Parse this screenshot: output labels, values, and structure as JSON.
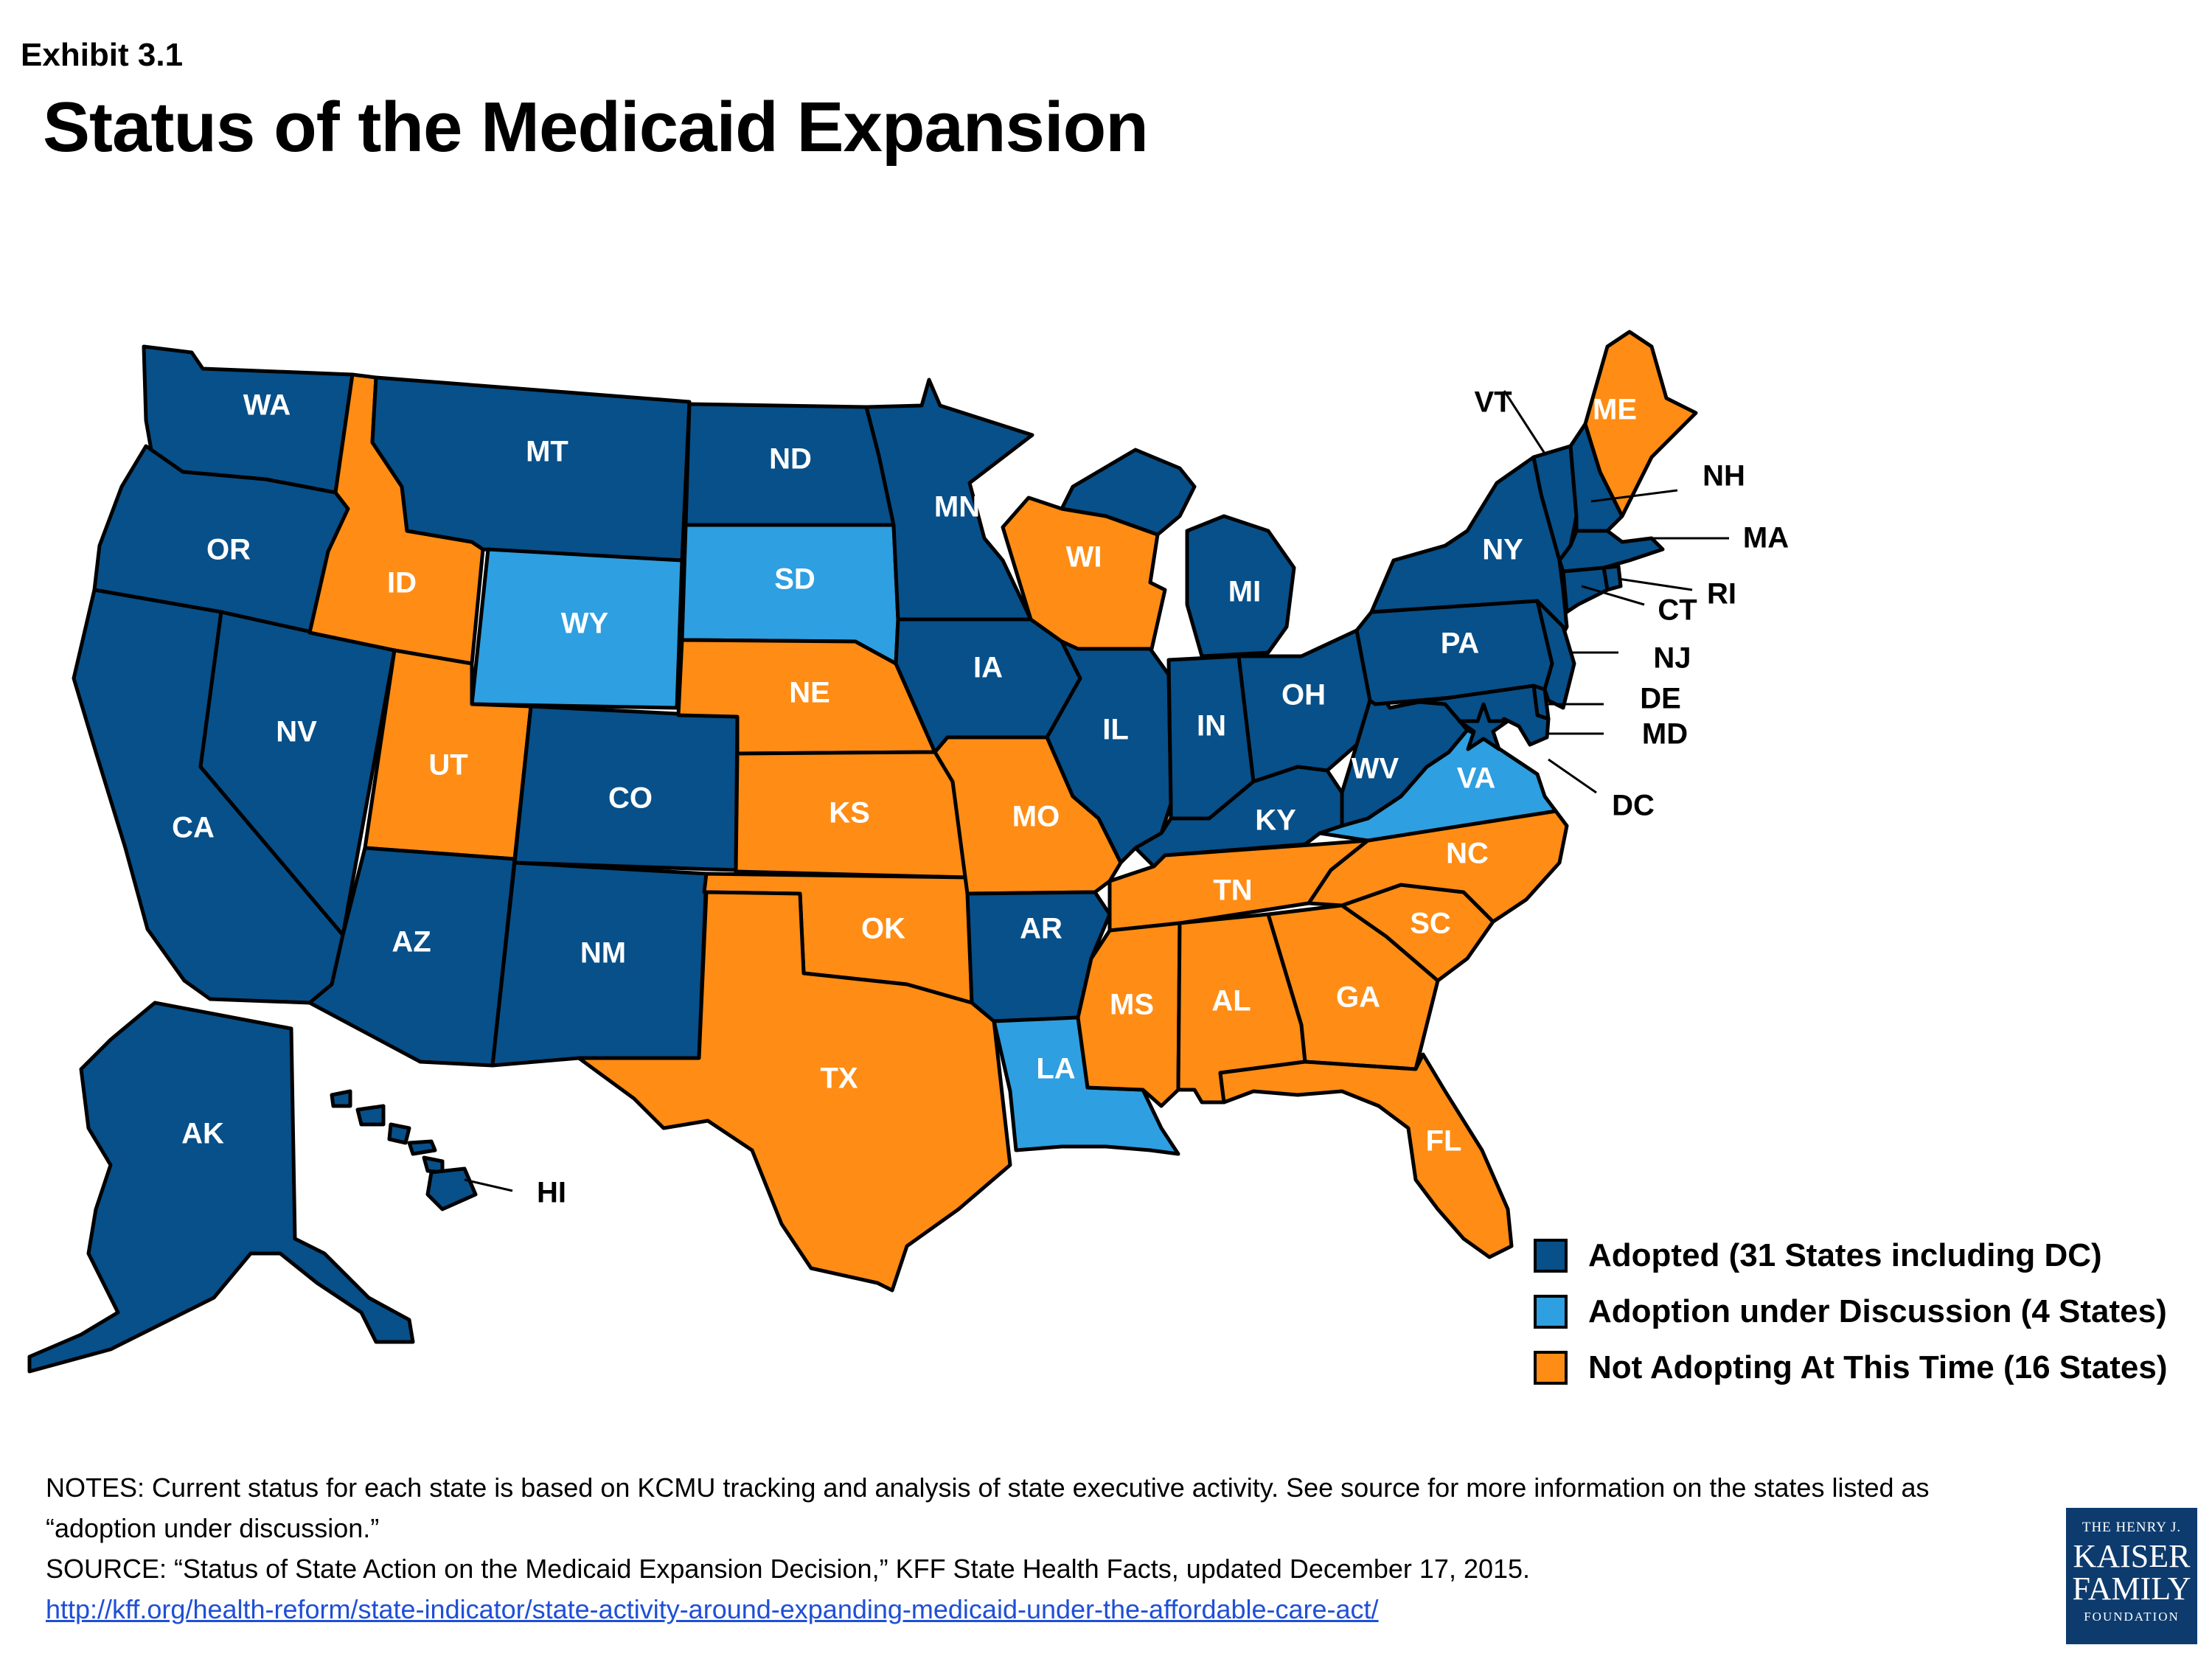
{
  "header": {
    "exhibit": "Exhibit 3.1",
    "title": "Status of the Medicaid Expansion"
  },
  "colors": {
    "adopted": "#07508a",
    "discussion": "#2e9fe0",
    "not_adopting": "#ff8c14"
  },
  "legend": [
    {
      "key": "adopted",
      "label": "Adopted (31 States including DC)"
    },
    {
      "key": "discussion",
      "label": "Adoption under Discussion (4 States)"
    },
    {
      "key": "not_adopting",
      "label": "Not Adopting At This Time (16 States)"
    }
  ],
  "states": {
    "WA": "adopted",
    "OR": "adopted",
    "CA": "adopted",
    "NV": "adopted",
    "ID": "not_adopting",
    "MT": "adopted",
    "WY": "discussion",
    "UT": "not_adopting",
    "AZ": "adopted",
    "CO": "adopted",
    "NM": "adopted",
    "ND": "adopted",
    "SD": "discussion",
    "NE": "not_adopting",
    "KS": "not_adopting",
    "OK": "not_adopting",
    "TX": "not_adopting",
    "MN": "adopted",
    "IA": "adopted",
    "MO": "not_adopting",
    "AR": "adopted",
    "LA": "discussion",
    "WI": "not_adopting",
    "IL": "adopted",
    "MI": "adopted",
    "IN": "adopted",
    "OH": "adopted",
    "KY": "adopted",
    "TN": "not_adopting",
    "MS": "not_adopting",
    "AL": "not_adopting",
    "GA": "not_adopting",
    "FL": "not_adopting",
    "SC": "not_adopting",
    "NC": "not_adopting",
    "VA": "discussion",
    "WV": "adopted",
    "PA": "adopted",
    "NY": "adopted",
    "VT": "adopted",
    "NH": "adopted",
    "ME": "not_adopting",
    "MA": "adopted",
    "RI": "adopted",
    "CT": "adopted",
    "NJ": "adopted",
    "DE": "adopted",
    "MD": "adopted",
    "DC": "adopted",
    "AK": "adopted",
    "HI": "adopted"
  },
  "notes": {
    "notes": "NOTES: Current status for each state is based on KCMU tracking and analysis of state executive activity. See source for more information on the states listed as “adoption under discussion.”",
    "source": "SOURCE: “Status of State Action on the Medicaid Expansion Decision,” KFF State Health Facts, updated December 17, 2015.",
    "link": "http://kff.org/health-reform/state-indicator/state-activity-around-expanding-medicaid-under-the-affordable-care-act/"
  },
  "logo": {
    "line1": "THE HENRY J.",
    "line2": "KAISER",
    "line3": "FAMILY",
    "line4": "FOUNDATION"
  }
}
